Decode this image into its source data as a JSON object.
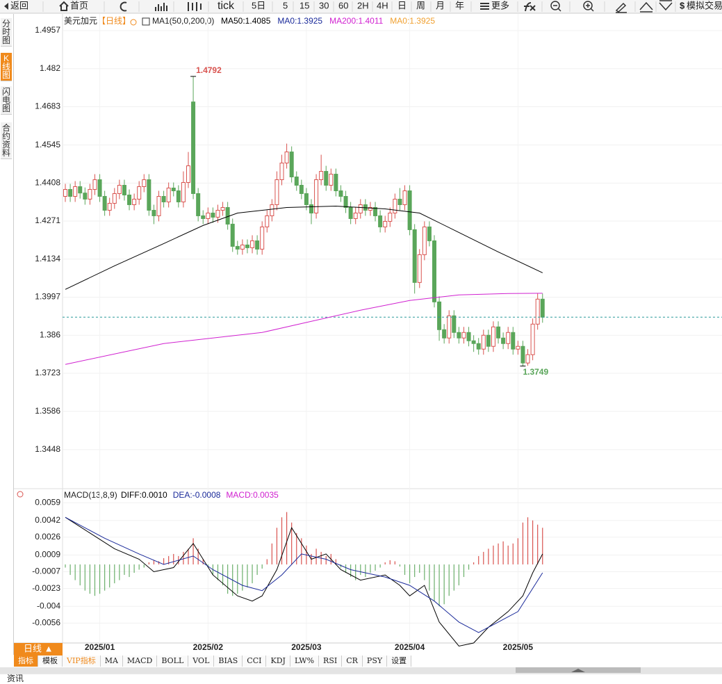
{
  "toolbar": [
    "返回",
    "首页",
    "tick",
    "5日",
    "5",
    "15",
    "30",
    "60",
    "2H",
    "4H",
    "日",
    "周",
    "月",
    "年",
    "更多",
    "模拟交易"
  ],
  "side_tabs": [
    "分时图",
    "K线图",
    "闪电图",
    "合约资料"
  ],
  "period_tab": "日线 ▲",
  "bottom_tabs": [
    "指标",
    "模板",
    "VIP指标",
    "MA",
    "MACD",
    "BOLL",
    "VOL",
    "BIAS",
    "CCI",
    "KDJ",
    "LW%",
    "RSI",
    "CR",
    "PSY",
    "设置"
  ],
  "footer": "资讯",
  "chart_data": [
    {
      "type": "candlestick",
      "title": "美元加元",
      "period": "【日线】",
      "indicator": "MA1(50,0,200,0)",
      "up_color": "#d9534f",
      "down_color": "#5aa65a",
      "ylim": [
        1.3315,
        1.5012
      ],
      "yticks": [
        1.4957,
        1.482,
        1.4683,
        1.4545,
        1.4408,
        1.4271,
        1.4134,
        1.3997,
        1.386,
        1.3723,
        1.3586,
        1.3448
      ],
      "xticks": [
        {
          "value": 7,
          "label": "2025/01"
        },
        {
          "value": 29,
          "label": "2025/02"
        },
        {
          "value": 49,
          "label": "2025/03"
        },
        {
          "value": 70,
          "label": "2025/04"
        },
        {
          "value": 92,
          "label": "2025/05"
        }
      ],
      "grid": true,
      "price_line": 1.3925,
      "price_line_color": "#2a9a9a",
      "ohlc": [
        [
          1.436,
          1.4405,
          1.434,
          1.4385
        ],
        [
          1.4385,
          1.4405,
          1.434,
          1.436
        ],
        [
          1.436,
          1.4415,
          1.434,
          1.4395
        ],
        [
          1.4395,
          1.4415,
          1.4352,
          1.4372
        ],
        [
          1.4372,
          1.4392,
          1.433,
          1.435
        ],
        [
          1.435,
          1.4405,
          1.433,
          1.4385
        ],
        [
          1.4385,
          1.444,
          1.4365,
          1.442
        ],
        [
          1.442,
          1.444,
          1.434,
          1.436
        ],
        [
          1.436,
          1.438,
          1.429,
          1.431
        ],
        [
          1.431,
          1.4355,
          1.429,
          1.4335
        ],
        [
          1.4335,
          1.439,
          1.4315,
          1.437
        ],
        [
          1.437,
          1.442,
          1.435,
          1.44
        ],
        [
          1.44,
          1.442,
          1.4345,
          1.4365
        ],
        [
          1.4365,
          1.4385,
          1.431,
          1.433
        ],
        [
          1.433,
          1.437,
          1.431,
          1.435
        ],
        [
          1.435,
          1.4415,
          1.433,
          1.4395
        ],
        [
          1.4395,
          1.444,
          1.4375,
          1.442
        ],
        [
          1.442,
          1.444,
          1.429,
          1.431
        ],
        [
          1.431,
          1.433,
          1.426,
          1.429
        ],
        [
          1.429,
          1.438,
          1.427,
          1.436
        ],
        [
          1.436,
          1.438,
          1.432,
          1.434
        ],
        [
          1.434,
          1.441,
          1.432,
          1.439
        ],
        [
          1.439,
          1.441,
          1.436,
          1.438
        ],
        [
          1.438,
          1.44,
          1.432,
          1.434
        ],
        [
          1.434,
          1.445,
          1.432,
          1.441
        ],
        [
          1.441,
          1.452,
          1.439,
          1.447
        ],
        [
          1.47,
          1.4792,
          1.435,
          1.437
        ],
        [
          1.437,
          1.439,
          1.427,
          1.429
        ],
        [
          1.429,
          1.431,
          1.426,
          1.428
        ],
        [
          1.428,
          1.432,
          1.426,
          1.43
        ],
        [
          1.43,
          1.432,
          1.4265,
          1.4285
        ],
        [
          1.4285,
          1.433,
          1.4265,
          1.431
        ],
        [
          1.431,
          1.434,
          1.429,
          1.432
        ],
        [
          1.432,
          1.434,
          1.424,
          1.426
        ],
        [
          1.426,
          1.428,
          1.416,
          1.418
        ],
        [
          1.418,
          1.42,
          1.415,
          1.417
        ],
        [
          1.417,
          1.4205,
          1.415,
          1.4185
        ],
        [
          1.4185,
          1.4205,
          1.4155,
          1.4175
        ],
        [
          1.4175,
          1.422,
          1.4155,
          1.42
        ],
        [
          1.42,
          1.422,
          1.415,
          1.417
        ],
        [
          1.417,
          1.427,
          1.415,
          1.425
        ],
        [
          1.425,
          1.431,
          1.423,
          1.429
        ],
        [
          1.429,
          1.435,
          1.427,
          1.433
        ],
        [
          1.433,
          1.445,
          1.431,
          1.442
        ],
        [
          1.442,
          1.451,
          1.44,
          1.448
        ],
        [
          1.448,
          1.455,
          1.446,
          1.452
        ],
        [
          1.452,
          1.454,
          1.441,
          1.443
        ],
        [
          1.443,
          1.445,
          1.438,
          1.44
        ],
        [
          1.44,
          1.442,
          1.435,
          1.437
        ],
        [
          1.437,
          1.439,
          1.431,
          1.433
        ],
        [
          1.433,
          1.435,
          1.426,
          1.43
        ],
        [
          1.43,
          1.444,
          1.428,
          1.442
        ],
        [
          1.442,
          1.451,
          1.44,
          1.445
        ],
        [
          1.445,
          1.447,
          1.438,
          1.44
        ],
        [
          1.44,
          1.446,
          1.438,
          1.444
        ],
        [
          1.444,
          1.446,
          1.436,
          1.438
        ],
        [
          1.438,
          1.44,
          1.434,
          1.436
        ],
        [
          1.436,
          1.438,
          1.43,
          1.432
        ],
        [
          1.432,
          1.434,
          1.426,
          1.428
        ],
        [
          1.428,
          1.432,
          1.426,
          1.43
        ],
        [
          1.43,
          1.435,
          1.428,
          1.433
        ],
        [
          1.433,
          1.435,
          1.429,
          1.431
        ],
        [
          1.431,
          1.434,
          1.429,
          1.432
        ],
        [
          1.432,
          1.434,
          1.427,
          1.429
        ],
        [
          1.429,
          1.431,
          1.423,
          1.425
        ],
        [
          1.425,
          1.429,
          1.423,
          1.427
        ],
        [
          1.427,
          1.432,
          1.425,
          1.43
        ],
        [
          1.43,
          1.437,
          1.428,
          1.435
        ],
        [
          1.435,
          1.439,
          1.431,
          1.433
        ],
        [
          1.433,
          1.44,
          1.431,
          1.438
        ],
        [
          1.438,
          1.44,
          1.422,
          1.424
        ],
        [
          1.424,
          1.426,
          1.401,
          1.405
        ],
        [
          1.405,
          1.417,
          1.403,
          1.415
        ],
        [
          1.415,
          1.427,
          1.413,
          1.425
        ],
        [
          1.425,
          1.427,
          1.418,
          1.42
        ],
        [
          1.42,
          1.422,
          1.396,
          1.398
        ],
        [
          1.398,
          1.4,
          1.384,
          1.388
        ],
        [
          1.388,
          1.39,
          1.383,
          1.385
        ],
        [
          1.385,
          1.395,
          1.383,
          1.393
        ],
        [
          1.393,
          1.395,
          1.385,
          1.387
        ],
        [
          1.387,
          1.389,
          1.383,
          1.385
        ],
        [
          1.385,
          1.389,
          1.383,
          1.387
        ],
        [
          1.387,
          1.389,
          1.382,
          1.384
        ],
        [
          1.384,
          1.386,
          1.38,
          1.383
        ],
        [
          1.383,
          1.385,
          1.379,
          1.381
        ],
        [
          1.381,
          1.388,
          1.379,
          1.386
        ],
        [
          1.386,
          1.388,
          1.38,
          1.382
        ],
        [
          1.382,
          1.391,
          1.38,
          1.389
        ],
        [
          1.389,
          1.391,
          1.383,
          1.385
        ],
        [
          1.385,
          1.387,
          1.381,
          1.383
        ],
        [
          1.383,
          1.389,
          1.381,
          1.387
        ],
        [
          1.387,
          1.389,
          1.379,
          1.381
        ],
        [
          1.381,
          1.384,
          1.379,
          1.382
        ],
        [
          1.382,
          1.384,
          1.3749,
          1.376
        ],
        [
          1.376,
          1.381,
          1.375,
          1.379
        ],
        [
          1.379,
          1.392,
          1.377,
          1.39
        ],
        [
          1.39,
          1.401,
          1.388,
          1.399
        ],
        [
          1.399,
          1.401,
          1.3905,
          1.3925
        ]
      ],
      "series": [
        {
          "name": "MA50:1.4085",
          "color": "#000000",
          "x": [
            0,
            10,
            20,
            28,
            35,
            45,
            55,
            65,
            72,
            80,
            88,
            97
          ],
          "values": [
            1.4025,
            1.411,
            1.419,
            1.4255,
            1.43,
            1.432,
            1.4325,
            1.4315,
            1.43,
            1.423,
            1.416,
            1.4085
          ]
        },
        {
          "name": "MA200:1.4011",
          "color": "#d020d0",
          "x": [
            0,
            20,
            40,
            50,
            60,
            70,
            80,
            90,
            97
          ],
          "values": [
            1.3755,
            1.383,
            1.387,
            1.391,
            1.395,
            1.3985,
            1.4005,
            1.401,
            1.4011
          ]
        }
      ],
      "legend_extra": [
        {
          "label": "MA0:1.3925",
          "color": "#1a2a9a"
        },
        {
          "label": "MA0:1.3925",
          "color": "#f0a030"
        }
      ],
      "annotations": [
        {
          "label": "1.4792",
          "x": 26,
          "y": 1.4792,
          "color": "#d9534f"
        },
        {
          "label": "1.3749",
          "x": 93,
          "y": 1.3749,
          "color": "#5aa65a"
        }
      ]
    },
    {
      "type": "macd",
      "title": "MACD(13,8,9)",
      "ylim": [
        -0.0075,
        0.0071
      ],
      "yticks": [
        0.0059,
        0.0042,
        0.0026,
        0.0009,
        -0.0007,
        -0.0023,
        -0.004,
        -0.0056
      ],
      "up_color": "#d9534f",
      "down_color": "#6aaf6a",
      "series": [
        {
          "name": "DIFF:0.0010",
          "color": "#000000",
          "x": [
            0,
            5,
            10,
            15,
            18,
            22,
            26,
            30,
            35,
            38,
            40,
            43,
            46,
            50,
            53,
            56,
            60,
            65,
            68,
            70,
            73,
            76,
            80,
            83,
            86,
            90,
            93,
            95,
            97
          ],
          "values": [
            0.0045,
            0.003,
            0.0015,
            0.0005,
            -0.0007,
            -0.0003,
            0.002,
            -0.001,
            -0.003,
            -0.0035,
            -0.003,
            -0.0005,
            0.0035,
            0.0005,
            0.001,
            -0.0005,
            -0.0015,
            -0.001,
            -0.002,
            -0.003,
            -0.002,
            -0.0055,
            -0.0078,
            -0.0075,
            -0.006,
            -0.0045,
            -0.003,
            -0.0008,
            0.001
          ]
        },
        {
          "name": "DEA:-0.0008",
          "color": "#1a2a9a",
          "x": [
            0,
            8,
            15,
            20,
            26,
            30,
            36,
            40,
            44,
            48,
            53,
            58,
            65,
            70,
            75,
            80,
            84,
            88,
            92,
            97
          ],
          "values": [
            0.0045,
            0.0025,
            0.001,
            0.0,
            0.0008,
            -0.0005,
            -0.002,
            -0.0025,
            -0.001,
            0.001,
            0.0005,
            -0.0005,
            -0.0012,
            -0.002,
            -0.0035,
            -0.0055,
            -0.0065,
            -0.0055,
            -0.0045,
            -0.0008
          ]
        }
      ],
      "histogram": {
        "name": "MACD:0.0035",
        "color": "#d020d0",
        "values": [
          -0.0003,
          -0.001,
          -0.0015,
          -0.002,
          -0.0025,
          -0.0028,
          -0.003,
          -0.0028,
          -0.0025,
          -0.0022,
          -0.0018,
          -0.0015,
          -0.001,
          -0.0012,
          -0.0008,
          -0.0005,
          -0.0003,
          0.0002,
          0.0004,
          0.0003,
          0.0006,
          0.0008,
          0.001,
          0.0008,
          0.0012,
          0.0015,
          0.0025,
          0.0015,
          0.0005,
          -0.0002,
          -0.001,
          -0.0015,
          -0.002,
          -0.0028,
          -0.003,
          -0.0028,
          -0.0025,
          -0.0022,
          -0.0018,
          -0.001,
          -0.0004,
          0.0005,
          0.002,
          0.0035,
          0.0045,
          0.005,
          0.004,
          0.003,
          0.0025,
          0.0018,
          0.001,
          0.0015,
          0.0012,
          0.0008,
          0.001,
          0.0005,
          -0.0003,
          -0.0008,
          -0.0012,
          -0.0015,
          -0.001,
          -0.0012,
          -0.0008,
          -0.0006,
          -0.0003,
          0.0002,
          0.0004,
          0.0003,
          -0.0002,
          -0.001,
          -0.0018,
          -0.0012,
          -0.0008,
          -0.0015,
          -0.0025,
          -0.0035,
          -0.004,
          -0.0038,
          -0.003,
          -0.0025,
          -0.002,
          -0.0012,
          -0.0005,
          0.0002,
          0.0008,
          0.0012,
          0.0015,
          0.0018,
          0.002,
          0.0022,
          0.0018,
          0.002,
          0.0025,
          0.004,
          0.0045,
          0.0042,
          0.0038,
          0.0035
        ]
      }
    }
  ]
}
